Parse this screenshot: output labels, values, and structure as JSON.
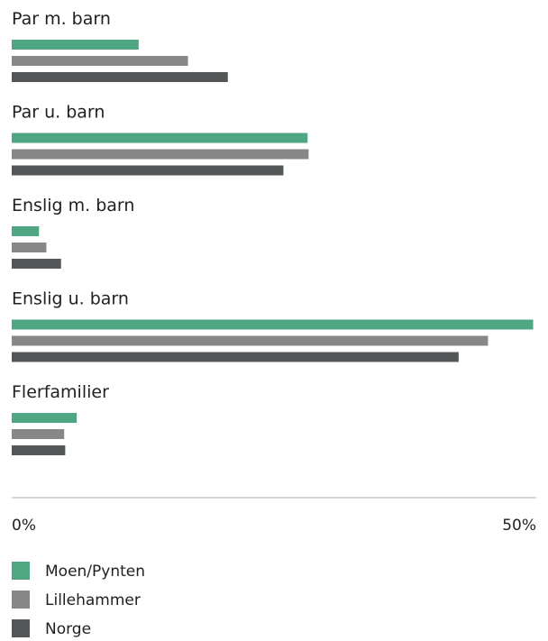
{
  "chart_data": {
    "type": "bar",
    "orientation": "horizontal",
    "categories": [
      "Par m. barn",
      "Par u. barn",
      "Enslig m. barn",
      "Enslig u. barn",
      "Flerfamilier"
    ],
    "series": [
      {
        "name": "Moen/Pynten",
        "color": "#4fa683",
        "values": [
          12.1,
          28.2,
          2.6,
          49.7,
          6.2
        ]
      },
      {
        "name": "Lillehammer",
        "color": "#878787",
        "values": [
          16.8,
          28.3,
          3.3,
          45.4,
          5.0
        ]
      },
      {
        "name": "Norge",
        "color": "#545757",
        "values": [
          20.6,
          25.9,
          4.7,
          42.6,
          5.1
        ]
      }
    ],
    "xlim": [
      0,
      50
    ],
    "x_ticks": [
      "0%",
      "50%"
    ],
    "legend_position": "bottom-left",
    "grid": false
  }
}
